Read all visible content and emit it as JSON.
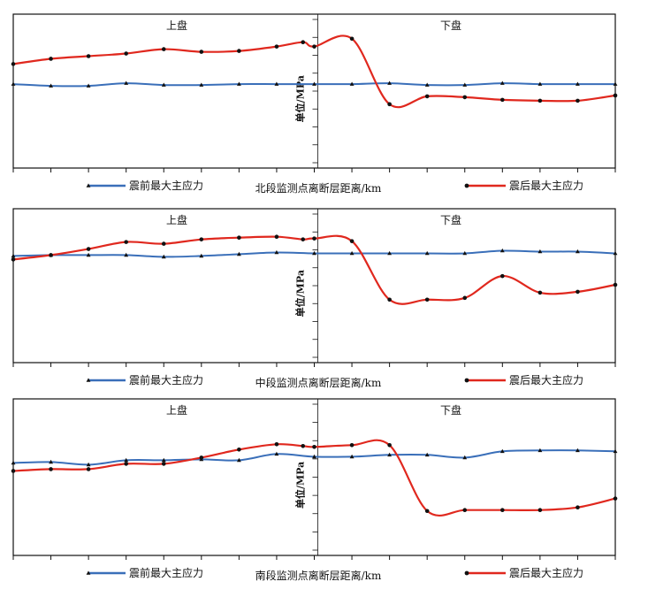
{
  "figure": {
    "legend_before": "震前最大主应力",
    "legend_after": "震后最大主应力",
    "ylabel": "单位/MPa",
    "hanging_wall": "上盘",
    "footwall": "下盘",
    "colors": {
      "before": "#3a6fb9",
      "after": "#e0281e",
      "axis": "#111111"
    }
  },
  "chart_data": [
    {
      "type": "line",
      "xlabel": "北段监测点离断层距离/km",
      "ylabel": "单位/MPa",
      "x": [
        -8,
        -7,
        -6,
        -5,
        -4,
        -3,
        -2,
        -1,
        0,
        1,
        2,
        3,
        4,
        5,
        6,
        7,
        8
      ],
      "series": [
        {
          "name": "震前最大主应力",
          "values": [
            4.4,
            4.3,
            4.3,
            4.45,
            4.35,
            4.35,
            4.4,
            4.4,
            4.4,
            4.4,
            4.45,
            4.35,
            4.35,
            4.45,
            4.4,
            4.4,
            4.4
          ]
        },
        {
          "name": "震后最大主应力",
          "values": [
            5.55,
            5.85,
            6.0,
            6.15,
            6.4,
            6.25,
            6.3,
            6.55,
            6.55,
            7.0,
            3.25,
            3.7,
            3.65,
            3.5,
            3.45,
            3.45,
            3.75
          ]
        }
      ],
      "x_special": [
        -0.3
      ],
      "after_special": [
        6.8
      ],
      "ylim": [
        0,
        8
      ],
      "legend_position": "bottom"
    },
    {
      "type": "line",
      "xlabel": "中段监测点离断层距离/km",
      "ylabel": "单位/MPa",
      "x": [
        -8,
        -7,
        -6,
        -5,
        -4,
        -3,
        -2,
        -1,
        0,
        1,
        2,
        3,
        4,
        5,
        6,
        7,
        8
      ],
      "series": [
        {
          "name": "震前最大主应力",
          "values": [
            5.7,
            5.75,
            5.75,
            5.75,
            5.65,
            5.7,
            5.8,
            5.9,
            5.85,
            5.85,
            5.85,
            5.85,
            5.85,
            6.0,
            5.95,
            5.95,
            5.85
          ]
        },
        {
          "name": "震后最大主应力",
          "values": [
            5.5,
            5.75,
            6.1,
            6.5,
            6.4,
            6.65,
            6.75,
            6.8,
            6.7,
            6.55,
            3.2,
            3.2,
            3.3,
            4.55,
            3.6,
            3.65,
            4.05
          ]
        }
      ],
      "x_special": [
        -0.3
      ],
      "after_special": [
        6.65
      ],
      "ylim": [
        0,
        8
      ],
      "legend_position": "bottom"
    },
    {
      "type": "line",
      "xlabel": "南段监测点离断层距离/km",
      "ylabel": "单位/MPa",
      "x": [
        -8,
        -7,
        -6,
        -5,
        -4,
        -3,
        -2,
        -1,
        0,
        1,
        2,
        3,
        4,
        5,
        6,
        7,
        8
      ],
      "series": [
        {
          "name": "震前最大主应力",
          "values": [
            4.8,
            4.85,
            4.7,
            4.95,
            4.95,
            5.0,
            4.95,
            5.3,
            5.15,
            5.15,
            5.25,
            5.25,
            5.1,
            5.45,
            5.5,
            5.5,
            5.45
          ]
        },
        {
          "name": "震后最大主应力",
          "values": [
            4.35,
            4.45,
            4.45,
            4.75,
            4.75,
            5.1,
            5.55,
            5.85,
            5.7,
            5.8,
            5.8,
            2.1,
            2.15,
            2.15,
            2.15,
            2.3,
            2.8
          ]
        }
      ],
      "x_special": [
        -0.3
      ],
      "after_special": [
        5.75
      ],
      "ylim": [
        0,
        8
      ],
      "legend_position": "bottom"
    }
  ]
}
